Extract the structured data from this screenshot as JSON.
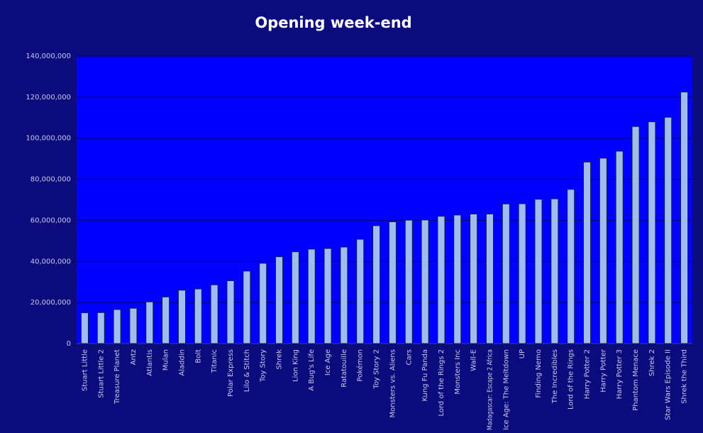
{
  "chart_data": {
    "type": "bar",
    "title": "Opening week-end",
    "categories": [
      "Stuart Little",
      "Stuart Little 2",
      "Treasure Planet",
      "Antz",
      "Atlantis",
      "Mulan",
      "Aladdin",
      "Bolt",
      "Titanic",
      "Polar Express",
      "Lilo & Stitch",
      "Toy Story",
      "Shrek",
      "Lion King",
      "A Bug's Life",
      "Ice Age",
      "Ratatouille",
      "Pokémon",
      "Toy Story 2",
      "Monsters vs. Aliens",
      "Cars",
      "Kung Fu Panda",
      "Lord of the Rings 2",
      "Monsters Inc",
      "Wall-E",
      "Madagascar: Escape 2 Africa",
      "Ice Age: The Meltdown",
      "UP",
      "Finding Nemo",
      "The Incredibles",
      "Lord of the Rings",
      "Harry Potter 2",
      "Harry Potter",
      "Harry Potter 3",
      "Phantom Menace",
      "Shrek 2",
      "Star Wars Episode II",
      "Shrek the Third"
    ],
    "values": [
      15000000,
      15100000,
      16600000,
      17200000,
      20300000,
      22700000,
      26000000,
      26600000,
      28600000,
      30600000,
      35300000,
      39100000,
      42300000,
      44700000,
      46000000,
      46300000,
      47000000,
      50800000,
      57400000,
      59300000,
      60100000,
      60200000,
      62000000,
      62600000,
      63100000,
      63100000,
      68000000,
      68100000,
      70300000,
      70500000,
      75100000,
      88400000,
      90300000,
      93700000,
      105700000,
      108000000,
      110200000,
      122500000
    ],
    "color": "#9dbdf0",
    "ylim": [
      0,
      140000000
    ],
    "yticks": [
      0,
      {
        "value": 20000000,
        "label": "20,000,000"
      },
      {
        "value": 40000000,
        "label": "40,000,000"
      },
      {
        "value": 60000000,
        "label": "60,000,000"
      },
      {
        "value": 80000000,
        "label": "80,000,000"
      },
      {
        "value": 100000000,
        "label": "100,000,000"
      },
      {
        "value": 120000000,
        "label": "120,000,000"
      },
      {
        "value": 140000000,
        "label": "140,000,000"
      }
    ],
    "grid": true
  }
}
